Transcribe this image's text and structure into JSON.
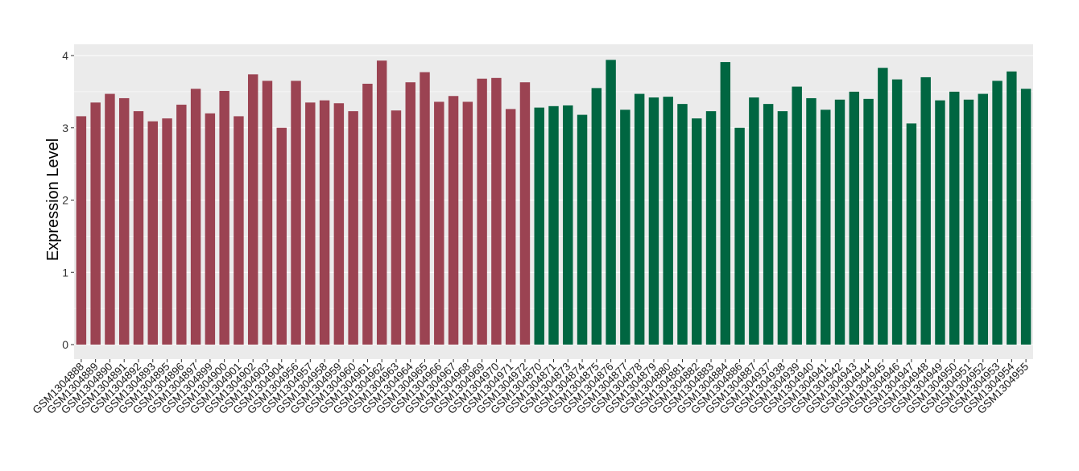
{
  "chart_data": {
    "type": "bar",
    "title": "",
    "xlabel": "",
    "ylabel": "Expression Level",
    "ylim": [
      0,
      4
    ],
    "yticks": [
      0,
      1,
      2,
      3,
      4
    ],
    "grid": true,
    "legend": "none",
    "colors": {
      "group1": "#9b4352",
      "group2": "#006641",
      "panel": "#ebebeb",
      "grid": "#ffffff"
    },
    "categories": [
      "GSM1304888",
      "GSM1304889",
      "GSM1304890",
      "GSM1304891",
      "GSM1304892",
      "GSM1304893",
      "GSM1304895",
      "GSM1304896",
      "GSM1304897",
      "GSM1304899",
      "GSM1304900",
      "GSM1304901",
      "GSM1304902",
      "GSM1304903",
      "GSM1304904",
      "GSM1304956",
      "GSM1304957",
      "GSM1304958",
      "GSM1304959",
      "GSM1304960",
      "GSM1304961",
      "GSM1304962",
      "GSM1304963",
      "GSM1304964",
      "GSM1304965",
      "GSM1304966",
      "GSM1304967",
      "GSM1304968",
      "GSM1304969",
      "GSM1304970",
      "GSM1304971",
      "GSM1304972",
      "GSM1304870",
      "GSM1304871",
      "GSM1304873",
      "GSM1304874",
      "GSM1304875",
      "GSM1304876",
      "GSM1304877",
      "GSM1304878",
      "GSM1304879",
      "GSM1304880",
      "GSM1304881",
      "GSM1304882",
      "GSM1304883",
      "GSM1304884",
      "GSM1304886",
      "GSM1304887",
      "GSM1304937",
      "GSM1304938",
      "GSM1304939",
      "GSM1304940",
      "GSM1304941",
      "GSM1304942",
      "GSM1304943",
      "GSM1304944",
      "GSM1304945",
      "GSM1304946",
      "GSM1304947",
      "GSM1304948",
      "GSM1304949",
      "GSM1304950",
      "GSM1304951",
      "GSM1304952",
      "GSM1304953",
      "GSM1304954",
      "GSM1304955"
    ],
    "values": [
      3.16,
      3.35,
      3.47,
      3.41,
      3.23,
      3.09,
      3.13,
      3.32,
      3.54,
      3.2,
      3.51,
      3.16,
      3.74,
      3.65,
      3.0,
      3.65,
      3.35,
      3.38,
      3.34,
      3.23,
      3.61,
      3.93,
      3.24,
      3.63,
      3.77,
      3.36,
      3.44,
      3.36,
      3.68,
      3.69,
      3.26,
      3.63,
      3.28,
      3.3,
      3.31,
      3.18,
      3.55,
      3.94,
      3.25,
      3.47,
      3.42,
      3.43,
      3.33,
      3.13,
      3.23,
      3.91,
      3.0,
      3.42,
      3.33,
      3.23,
      3.57,
      3.41,
      3.25,
      3.39,
      3.5,
      3.4,
      3.83,
      3.67,
      3.06,
      3.7,
      3.38,
      3.5,
      3.39,
      3.47,
      3.65,
      3.78,
      3.54
    ],
    "groups": [
      "group1",
      "group1",
      "group1",
      "group1",
      "group1",
      "group1",
      "group1",
      "group1",
      "group1",
      "group1",
      "group1",
      "group1",
      "group1",
      "group1",
      "group1",
      "group1",
      "group1",
      "group1",
      "group1",
      "group1",
      "group1",
      "group1",
      "group1",
      "group1",
      "group1",
      "group1",
      "group1",
      "group1",
      "group1",
      "group1",
      "group1",
      "group1",
      "group2",
      "group2",
      "group2",
      "group2",
      "group2",
      "group2",
      "group2",
      "group2",
      "group2",
      "group2",
      "group2",
      "group2",
      "group2",
      "group2",
      "group2",
      "group2",
      "group2",
      "group2",
      "group2",
      "group2",
      "group2",
      "group2",
      "group2",
      "group2",
      "group2",
      "group2",
      "group2",
      "group2",
      "group2",
      "group2",
      "group2",
      "group2",
      "group2",
      "group2",
      "group2"
    ]
  }
}
